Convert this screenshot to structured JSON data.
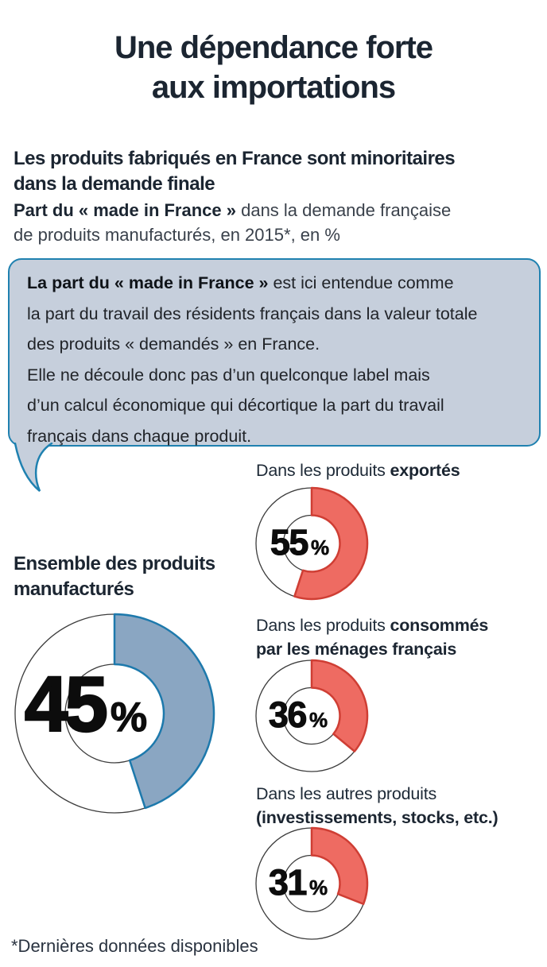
{
  "title": {
    "lines": [
      "Une dépendance forte",
      "aux importations"
    ]
  },
  "subtitle": {
    "lines": [
      "Les produits fabriqués en France sont minoritaires",
      "dans la demande finale"
    ]
  },
  "lede": {
    "bold": "Part du « made in France »",
    "rest": " dans la demande française",
    "line2": "de produits manufacturés, en 2015*, en %"
  },
  "bubble": {
    "intro_bold": "La part du « made in France »",
    "intro_rest": " est ici entendue comme",
    "lines": [
      "la part du travail des résidents français dans la valeur totale",
      "des produits « demandés » en France.",
      "Elle ne découle donc pas d’un quelconque label mais",
      "d’un calcul économique qui décortique la part du travail",
      "français dans chaque produit."
    ]
  },
  "charts": [
    {
      "name": "ensemble",
      "label": [
        "Ensemble des produits",
        "manufacturés"
      ],
      "value": 45,
      "unit": "%",
      "fill": "#8aa6c2",
      "stroke": "#1d79ac",
      "ring_outline": "#3c3c3c",
      "donut": {
        "size": 262,
        "outer_r": 125,
        "inner_r": 62
      }
    },
    {
      "name": "exportes",
      "label": [
        "Dans les produits ",
        "exportés"
      ],
      "value": 55,
      "unit": "%",
      "fill": "#ee6b62",
      "stroke": "#cf3e34",
      "ring_outline": "#3c3c3c",
      "donut": {
        "size": 150,
        "outer_r": 70,
        "inner_r": 35.5
      }
    },
    {
      "name": "consommes",
      "label": [
        "Dans les produits ",
        "consommés",
        "par les ménages français"
      ],
      "value": 36,
      "unit": "%",
      "fill": "#ee6b62",
      "stroke": "#cf3e34",
      "ring_outline": "#3c3c3c",
      "donut": {
        "size": 150,
        "outer_r": 70,
        "inner_r": 35.5
      }
    },
    {
      "name": "autres",
      "label": [
        "Dans les autres produits",
        "(investissements, stocks, etc.)"
      ],
      "value": 31,
      "unit": "%",
      "fill": "#ee6b62",
      "stroke": "#cf3e34",
      "ring_outline": "#3c3c3c",
      "donut": {
        "size": 150,
        "outer_r": 70,
        "inner_r": 35.5
      }
    }
  ],
  "footnote": "*Dernières données disponibles",
  "palette": {
    "heading": "#1b2531",
    "body_text": "#3a414b",
    "bubble_fill": "#c6cfdc",
    "bubble_border": "#1f81b0",
    "red_fill": "#ee6b62",
    "red_stroke": "#cf3e34",
    "blue_fill": "#8aa6c2",
    "blue_stroke": "#1d79ac",
    "number": "#0c0c0c",
    "ring_outline": "#3c3c3c"
  },
  "chart_data": {
    "type": "pie",
    "subtype": "donut-set",
    "title": "Une dépendance forte aux importations",
    "subtitle": "Les produits fabriqués en France sont minoritaires dans la demande finale",
    "measure": "Part du « made in France » dans la demande française de produits manufacturés, en 2015*, en %",
    "unit": "%",
    "series": [
      {
        "name": "Ensemble des produits manufacturés",
        "value": 45,
        "color": "#8aa6c2"
      },
      {
        "name": "Dans les produits exportés",
        "value": 55,
        "color": "#ee6b62"
      },
      {
        "name": "Dans les produits consommés par les ménages français",
        "value": 36,
        "color": "#ee6b62"
      },
      {
        "name": "Dans les autres produits (investissements, stocks, etc.)",
        "value": 31,
        "color": "#ee6b62"
      }
    ],
    "annotation": "La part du « made in France » est ici entendue comme la part du travail des résidents français dans la valeur totale des produits « demandés » en France. Elle ne découle donc pas d’un quelconque label mais d’un calcul économique qui décortique la part du travail français dans chaque produit.",
    "footnote": "*Dernières données disponibles",
    "arc_start": "12-o-clock",
    "arc_direction": "clockwise"
  }
}
